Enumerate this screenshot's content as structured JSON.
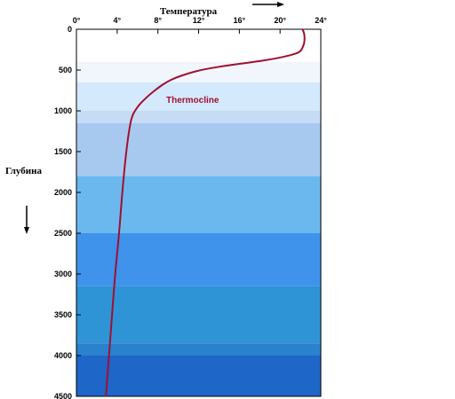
{
  "chart_data": {
    "type": "line",
    "title": "",
    "xlabel": "Температура",
    "ylabel": "Глубина",
    "xlim": [
      0,
      24
    ],
    "ylim": [
      0,
      4500
    ],
    "x_ticks": [
      0,
      4,
      8,
      12,
      16,
      20,
      24
    ],
    "x_tick_labels": [
      "0°",
      "4°",
      "8°",
      "12°",
      "16°",
      "20°",
      "24°"
    ],
    "y_ticks": [
      0,
      500,
      1000,
      1500,
      2000,
      2500,
      3000,
      3500,
      4000,
      4500
    ],
    "y_tick_labels": [
      "0",
      "500",
      "1000",
      "1500",
      "2000",
      "2500",
      "3000",
      "3500",
      "4000",
      "4500"
    ],
    "x_axis_position": "top",
    "y_axis_inverted": true,
    "grid": false,
    "annotations": [
      {
        "text": "Thermocline",
        "color": "#a01030"
      }
    ],
    "series": [
      {
        "color": "#a01030",
        "points": [
          [
            22.2,
            0
          ],
          [
            22.4,
            50
          ],
          [
            22.4,
            150
          ],
          [
            22.3,
            200
          ],
          [
            22,
            280
          ],
          [
            21,
            320
          ],
          [
            19.5,
            360
          ],
          [
            17.5,
            400
          ],
          [
            15,
            440
          ],
          [
            12.5,
            490
          ],
          [
            11,
            540
          ],
          [
            9.8,
            590
          ],
          [
            8.8,
            650
          ],
          [
            8.0,
            720
          ],
          [
            7.2,
            800
          ],
          [
            6.5,
            880
          ],
          [
            6.0,
            950
          ],
          [
            5.5,
            1050
          ],
          [
            5.3,
            1150
          ],
          [
            5.1,
            1300
          ],
          [
            4.8,
            1600
          ],
          [
            4.5,
            2000
          ],
          [
            4.2,
            2500
          ],
          [
            3.8,
            3000
          ],
          [
            3.5,
            3500
          ],
          [
            3.2,
            4000
          ],
          [
            2.9,
            4500
          ]
        ]
      }
    ],
    "background_depth_bands": [
      {
        "from": 0,
        "to": 400,
        "color": "#ffffff"
      },
      {
        "from": 400,
        "to": 650,
        "color": "#f1f6fc"
      },
      {
        "from": 650,
        "to": 1000,
        "color": "#d4e9fb"
      },
      {
        "from": 1000,
        "to": 1150,
        "color": "#c5dcf4"
      },
      {
        "from": 1150,
        "to": 1800,
        "color": "#a8c9ef"
      },
      {
        "from": 1800,
        "to": 2500,
        "color": "#6bb8ef"
      },
      {
        "from": 2500,
        "to": 3150,
        "color": "#3f93ea"
      },
      {
        "from": 3150,
        "to": 3850,
        "color": "#2f94d6"
      },
      {
        "from": 3850,
        "to": 4000,
        "color": "#2a82cf"
      },
      {
        "from": 4000,
        "to": 4500,
        "color": "#1f66c9"
      }
    ]
  }
}
